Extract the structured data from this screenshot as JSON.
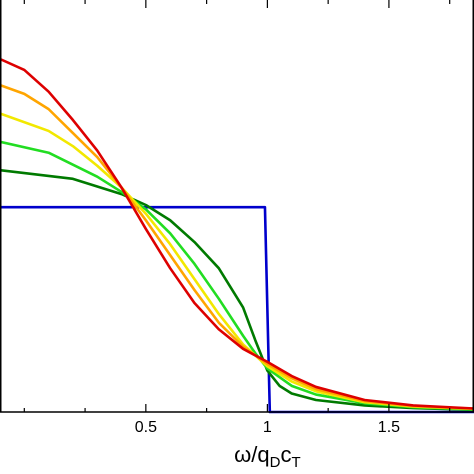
{
  "chart_data": {
    "type": "line",
    "title": "",
    "xlabel": {
      "base": "ω/q",
      "sub1": "D",
      "mid": "c",
      "sub2": "T"
    },
    "ylabel": "",
    "xlim": [
      -0.1,
      1.85
    ],
    "ylim": [
      0,
      1.9
    ],
    "x_ticks": [
      {
        "value": 0.5,
        "label": "0.5"
      },
      {
        "value": 1.0,
        "label": "1"
      },
      {
        "value": 1.5,
        "label": "1.5"
      }
    ],
    "x_minor_ticks": [
      0,
      0.25,
      0.75,
      1.25,
      1.75
    ],
    "y_ticks": [],
    "grid": false,
    "legend": "none",
    "series": [
      {
        "color": "#0000cc",
        "points": [
          [
            -0.1,
            0.94
          ],
          [
            0.99,
            0.94
          ],
          [
            1.01,
            0.0
          ],
          [
            1.85,
            0.0
          ]
        ]
      },
      {
        "color": "#007a00",
        "points": [
          [
            -0.1,
            1.11
          ],
          [
            0.2,
            1.07
          ],
          [
            0.4,
            1.0
          ],
          [
            0.5,
            0.95
          ],
          [
            0.6,
            0.88
          ],
          [
            0.7,
            0.78
          ],
          [
            0.8,
            0.66
          ],
          [
            0.9,
            0.48
          ],
          [
            0.95,
            0.33
          ],
          [
            1.0,
            0.19
          ],
          [
            1.05,
            0.12
          ],
          [
            1.1,
            0.085
          ],
          [
            1.2,
            0.055
          ],
          [
            1.4,
            0.03
          ],
          [
            1.6,
            0.018
          ],
          [
            1.85,
            0.01
          ]
        ]
      },
      {
        "color": "#22dd22",
        "points": [
          [
            -0.1,
            1.24
          ],
          [
            0.1,
            1.19
          ],
          [
            0.3,
            1.08
          ],
          [
            0.4,
            1.01
          ],
          [
            0.5,
            0.93
          ],
          [
            0.6,
            0.82
          ],
          [
            0.7,
            0.68
          ],
          [
            0.8,
            0.52
          ],
          [
            0.9,
            0.35
          ],
          [
            0.95,
            0.27
          ],
          [
            1.0,
            0.2
          ],
          [
            1.1,
            0.12
          ],
          [
            1.2,
            0.08
          ],
          [
            1.4,
            0.04
          ],
          [
            1.6,
            0.022
          ],
          [
            1.85,
            0.012
          ]
        ]
      },
      {
        "color": "#f2e800",
        "points": [
          [
            -0.1,
            1.37
          ],
          [
            0.1,
            1.29
          ],
          [
            0.2,
            1.22
          ],
          [
            0.3,
            1.13
          ],
          [
            0.4,
            1.03
          ],
          [
            0.5,
            0.91
          ],
          [
            0.6,
            0.77
          ],
          [
            0.7,
            0.61
          ],
          [
            0.8,
            0.45
          ],
          [
            0.9,
            0.31
          ],
          [
            1.0,
            0.21
          ],
          [
            1.1,
            0.14
          ],
          [
            1.2,
            0.095
          ],
          [
            1.4,
            0.045
          ],
          [
            1.6,
            0.025
          ],
          [
            1.85,
            0.014
          ]
        ]
      },
      {
        "color": "#ffa500",
        "points": [
          [
            -0.1,
            1.5
          ],
          [
            0.0,
            1.46
          ],
          [
            0.1,
            1.39
          ],
          [
            0.2,
            1.28
          ],
          [
            0.3,
            1.17
          ],
          [
            0.4,
            1.03
          ],
          [
            0.5,
            0.88
          ],
          [
            0.6,
            0.72
          ],
          [
            0.7,
            0.56
          ],
          [
            0.8,
            0.41
          ],
          [
            0.9,
            0.3
          ],
          [
            1.0,
            0.22
          ],
          [
            1.1,
            0.155
          ],
          [
            1.2,
            0.105
          ],
          [
            1.4,
            0.05
          ],
          [
            1.6,
            0.027
          ],
          [
            1.85,
            0.015
          ]
        ]
      },
      {
        "color": "#dd0000",
        "points": [
          [
            -0.1,
            1.62
          ],
          [
            0.0,
            1.57
          ],
          [
            0.1,
            1.47
          ],
          [
            0.2,
            1.34
          ],
          [
            0.3,
            1.2
          ],
          [
            0.4,
            1.03
          ],
          [
            0.5,
            0.84
          ],
          [
            0.6,
            0.66
          ],
          [
            0.7,
            0.5
          ],
          [
            0.8,
            0.38
          ],
          [
            0.9,
            0.29
          ],
          [
            1.0,
            0.23
          ],
          [
            1.1,
            0.165
          ],
          [
            1.2,
            0.115
          ],
          [
            1.4,
            0.055
          ],
          [
            1.6,
            0.03
          ],
          [
            1.85,
            0.016
          ]
        ]
      }
    ]
  }
}
